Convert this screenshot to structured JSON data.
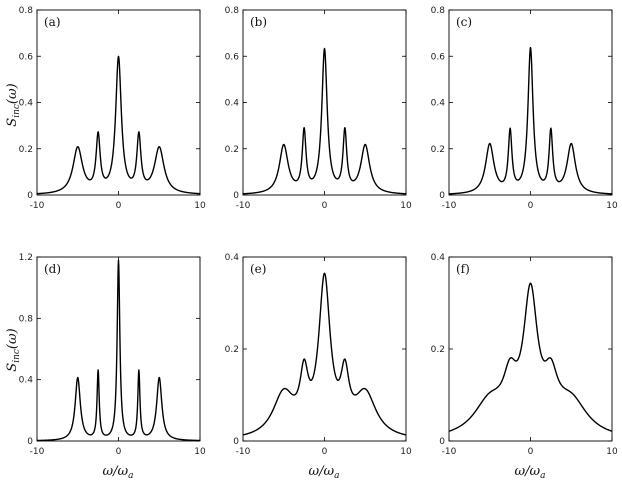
{
  "figure": {
    "ylabel": {
      "main": "S",
      "sub": "inc",
      "arg": "(ω)"
    },
    "xlabel": {
      "main": "ω/ω",
      "sub": "a"
    }
  },
  "chart_data": [
    {
      "type": "line",
      "panel_label": "(a)",
      "xlim": [
        -10,
        10
      ],
      "ylim": [
        0,
        0.8
      ],
      "xticks": [
        -10,
        0,
        10
      ],
      "xtick_labels": [
        "-10",
        "0",
        "10"
      ],
      "yticks": [
        0,
        0.2,
        0.4,
        0.6,
        0.8
      ],
      "ytick_labels": [
        "0",
        "0.2",
        "0.4",
        "0.6",
        "0.8"
      ],
      "series": [
        {
          "peaks": [
            {
              "x": -5,
              "h": 0.2,
              "w": 0.7
            },
            {
              "x": -2.5,
              "h": 0.24,
              "w": 0.3
            },
            {
              "x": 0,
              "h": 0.585,
              "w": 0.42
            },
            {
              "x": 2.5,
              "h": 0.24,
              "w": 0.3
            },
            {
              "x": 5,
              "h": 0.2,
              "w": 0.7
            }
          ]
        }
      ]
    },
    {
      "type": "line",
      "panel_label": "(b)",
      "xlim": [
        -10,
        10
      ],
      "ylim": [
        0,
        0.8
      ],
      "xticks": [
        -10,
        0,
        10
      ],
      "xtick_labels": [
        "-10",
        "0",
        "10"
      ],
      "yticks": [
        0,
        0.2,
        0.4,
        0.6,
        0.8
      ],
      "ytick_labels": [
        "0",
        "0.2",
        "0.4",
        "0.6",
        "0.8"
      ],
      "series": [
        {
          "peaks": [
            {
              "x": -5,
              "h": 0.21,
              "w": 0.65
            },
            {
              "x": -2.5,
              "h": 0.26,
              "w": 0.28
            },
            {
              "x": 0,
              "h": 0.62,
              "w": 0.4
            },
            {
              "x": 2.5,
              "h": 0.26,
              "w": 0.28
            },
            {
              "x": 5,
              "h": 0.21,
              "w": 0.65
            }
          ]
        }
      ]
    },
    {
      "type": "line",
      "panel_label": "(c)",
      "xlim": [
        -10,
        10
      ],
      "ylim": [
        0,
        0.8
      ],
      "xticks": [
        -10,
        0,
        10
      ],
      "xtick_labels": [
        "-10",
        "0",
        "10"
      ],
      "yticks": [
        0,
        0.2,
        0.4,
        0.6,
        0.8
      ],
      "ytick_labels": [
        "0",
        "0.2",
        "0.4",
        "0.6",
        "0.8"
      ],
      "series": [
        {
          "peaks": [
            {
              "x": -5,
              "h": 0.215,
              "w": 0.62
            },
            {
              "x": -2.5,
              "h": 0.26,
              "w": 0.27
            },
            {
              "x": 0,
              "h": 0.625,
              "w": 0.38
            },
            {
              "x": 2.5,
              "h": 0.26,
              "w": 0.27
            },
            {
              "x": 5,
              "h": 0.215,
              "w": 0.62
            }
          ]
        }
      ]
    },
    {
      "type": "line",
      "panel_label": "(d)",
      "xlim": [
        -10,
        10
      ],
      "ylim": [
        0,
        1.2
      ],
      "xticks": [
        -10,
        0,
        10
      ],
      "xtick_labels": [
        "-10",
        "0",
        "10"
      ],
      "yticks": [
        0,
        0.4,
        0.8,
        1.2
      ],
      "ytick_labels": [
        "0",
        "0.4",
        "0.8",
        "1.2"
      ],
      "series": [
        {
          "peaks": [
            {
              "x": -5,
              "h": 0.41,
              "w": 0.38
            },
            {
              "x": -2.5,
              "h": 0.445,
              "w": 0.16
            },
            {
              "x": 0,
              "h": 1.17,
              "w": 0.2
            },
            {
              "x": 2.5,
              "h": 0.445,
              "w": 0.16
            },
            {
              "x": 5,
              "h": 0.41,
              "w": 0.38
            }
          ]
        }
      ]
    },
    {
      "type": "line",
      "panel_label": "(e)",
      "xlim": [
        -10,
        10
      ],
      "ylim": [
        0,
        0.4
      ],
      "xticks": [
        -10,
        0,
        10
      ],
      "xtick_labels": [
        "-10",
        "0",
        "10"
      ],
      "yticks": [
        0,
        0.2,
        0.4
      ],
      "ytick_labels": [
        "0",
        "0.2",
        "0.4"
      ],
      "series": [
        {
          "peaks": [
            {
              "x": -5,
              "h": 0.095,
              "w": 1.6
            },
            {
              "x": -2.5,
              "h": 0.11,
              "w": 0.6
            },
            {
              "x": 0,
              "h": 0.335,
              "w": 0.85
            },
            {
              "x": 2.5,
              "h": 0.11,
              "w": 0.6
            },
            {
              "x": 5,
              "h": 0.095,
              "w": 1.6
            }
          ]
        }
      ]
    },
    {
      "type": "line",
      "panel_label": "(f)",
      "xlim": [
        -10,
        10
      ],
      "ylim": [
        0,
        0.4
      ],
      "xticks": [
        -10,
        0,
        10
      ],
      "xtick_labels": [
        "-10",
        "0",
        "10"
      ],
      "yticks": [
        0,
        0.2,
        0.4
      ],
      "ytick_labels": [
        "0",
        "0.2",
        "0.4"
      ],
      "series": [
        {
          "peaks": [
            {
              "x": -5,
              "h": 0.075,
              "w": 2.4
            },
            {
              "x": -2.5,
              "h": 0.09,
              "w": 1.0
            },
            {
              "x": 0,
              "h": 0.29,
              "w": 1.05
            },
            {
              "x": 2.5,
              "h": 0.09,
              "w": 1.0
            },
            {
              "x": 5,
              "h": 0.075,
              "w": 2.4
            }
          ]
        }
      ]
    }
  ]
}
